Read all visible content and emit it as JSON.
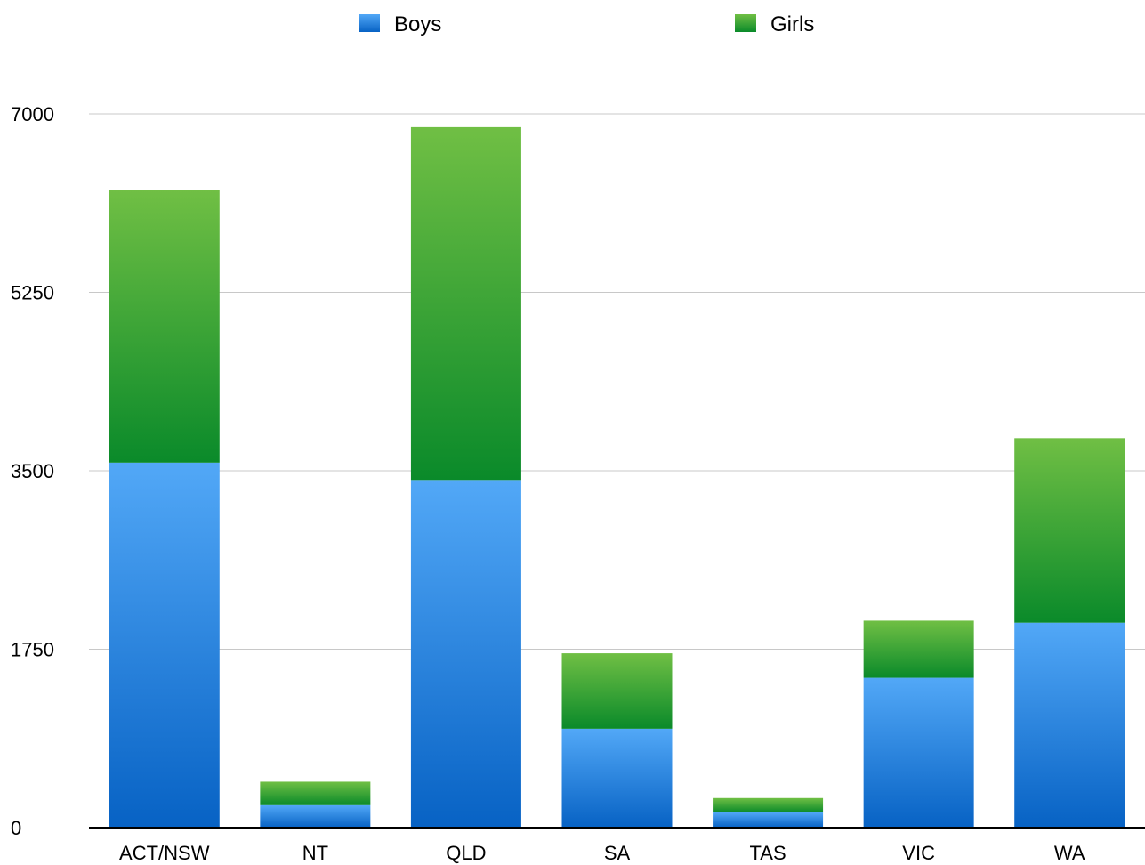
{
  "chart_data": {
    "type": "bar",
    "stacked": true,
    "categories": [
      "ACT/NSW",
      "NT",
      "QLD",
      "SA",
      "TAS",
      "VIC",
      "WA"
    ],
    "series": [
      {
        "name": "Boys",
        "values": [
          3580,
          220,
          3410,
          970,
          150,
          1470,
          2010
        ],
        "color_top": "#52a8f7",
        "color_bottom": "#0762c4"
      },
      {
        "name": "Girls",
        "values": [
          2670,
          230,
          3460,
          740,
          140,
          560,
          1810
        ],
        "color_top": "#70bf44",
        "color_bottom": "#0a8a2a"
      }
    ],
    "ylim": [
      0,
      7000
    ],
    "yticks": [
      0,
      1750,
      3500,
      5250,
      7000
    ],
    "grid": true,
    "legend_position": "top",
    "title": "",
    "xlabel": "",
    "ylabel": ""
  }
}
